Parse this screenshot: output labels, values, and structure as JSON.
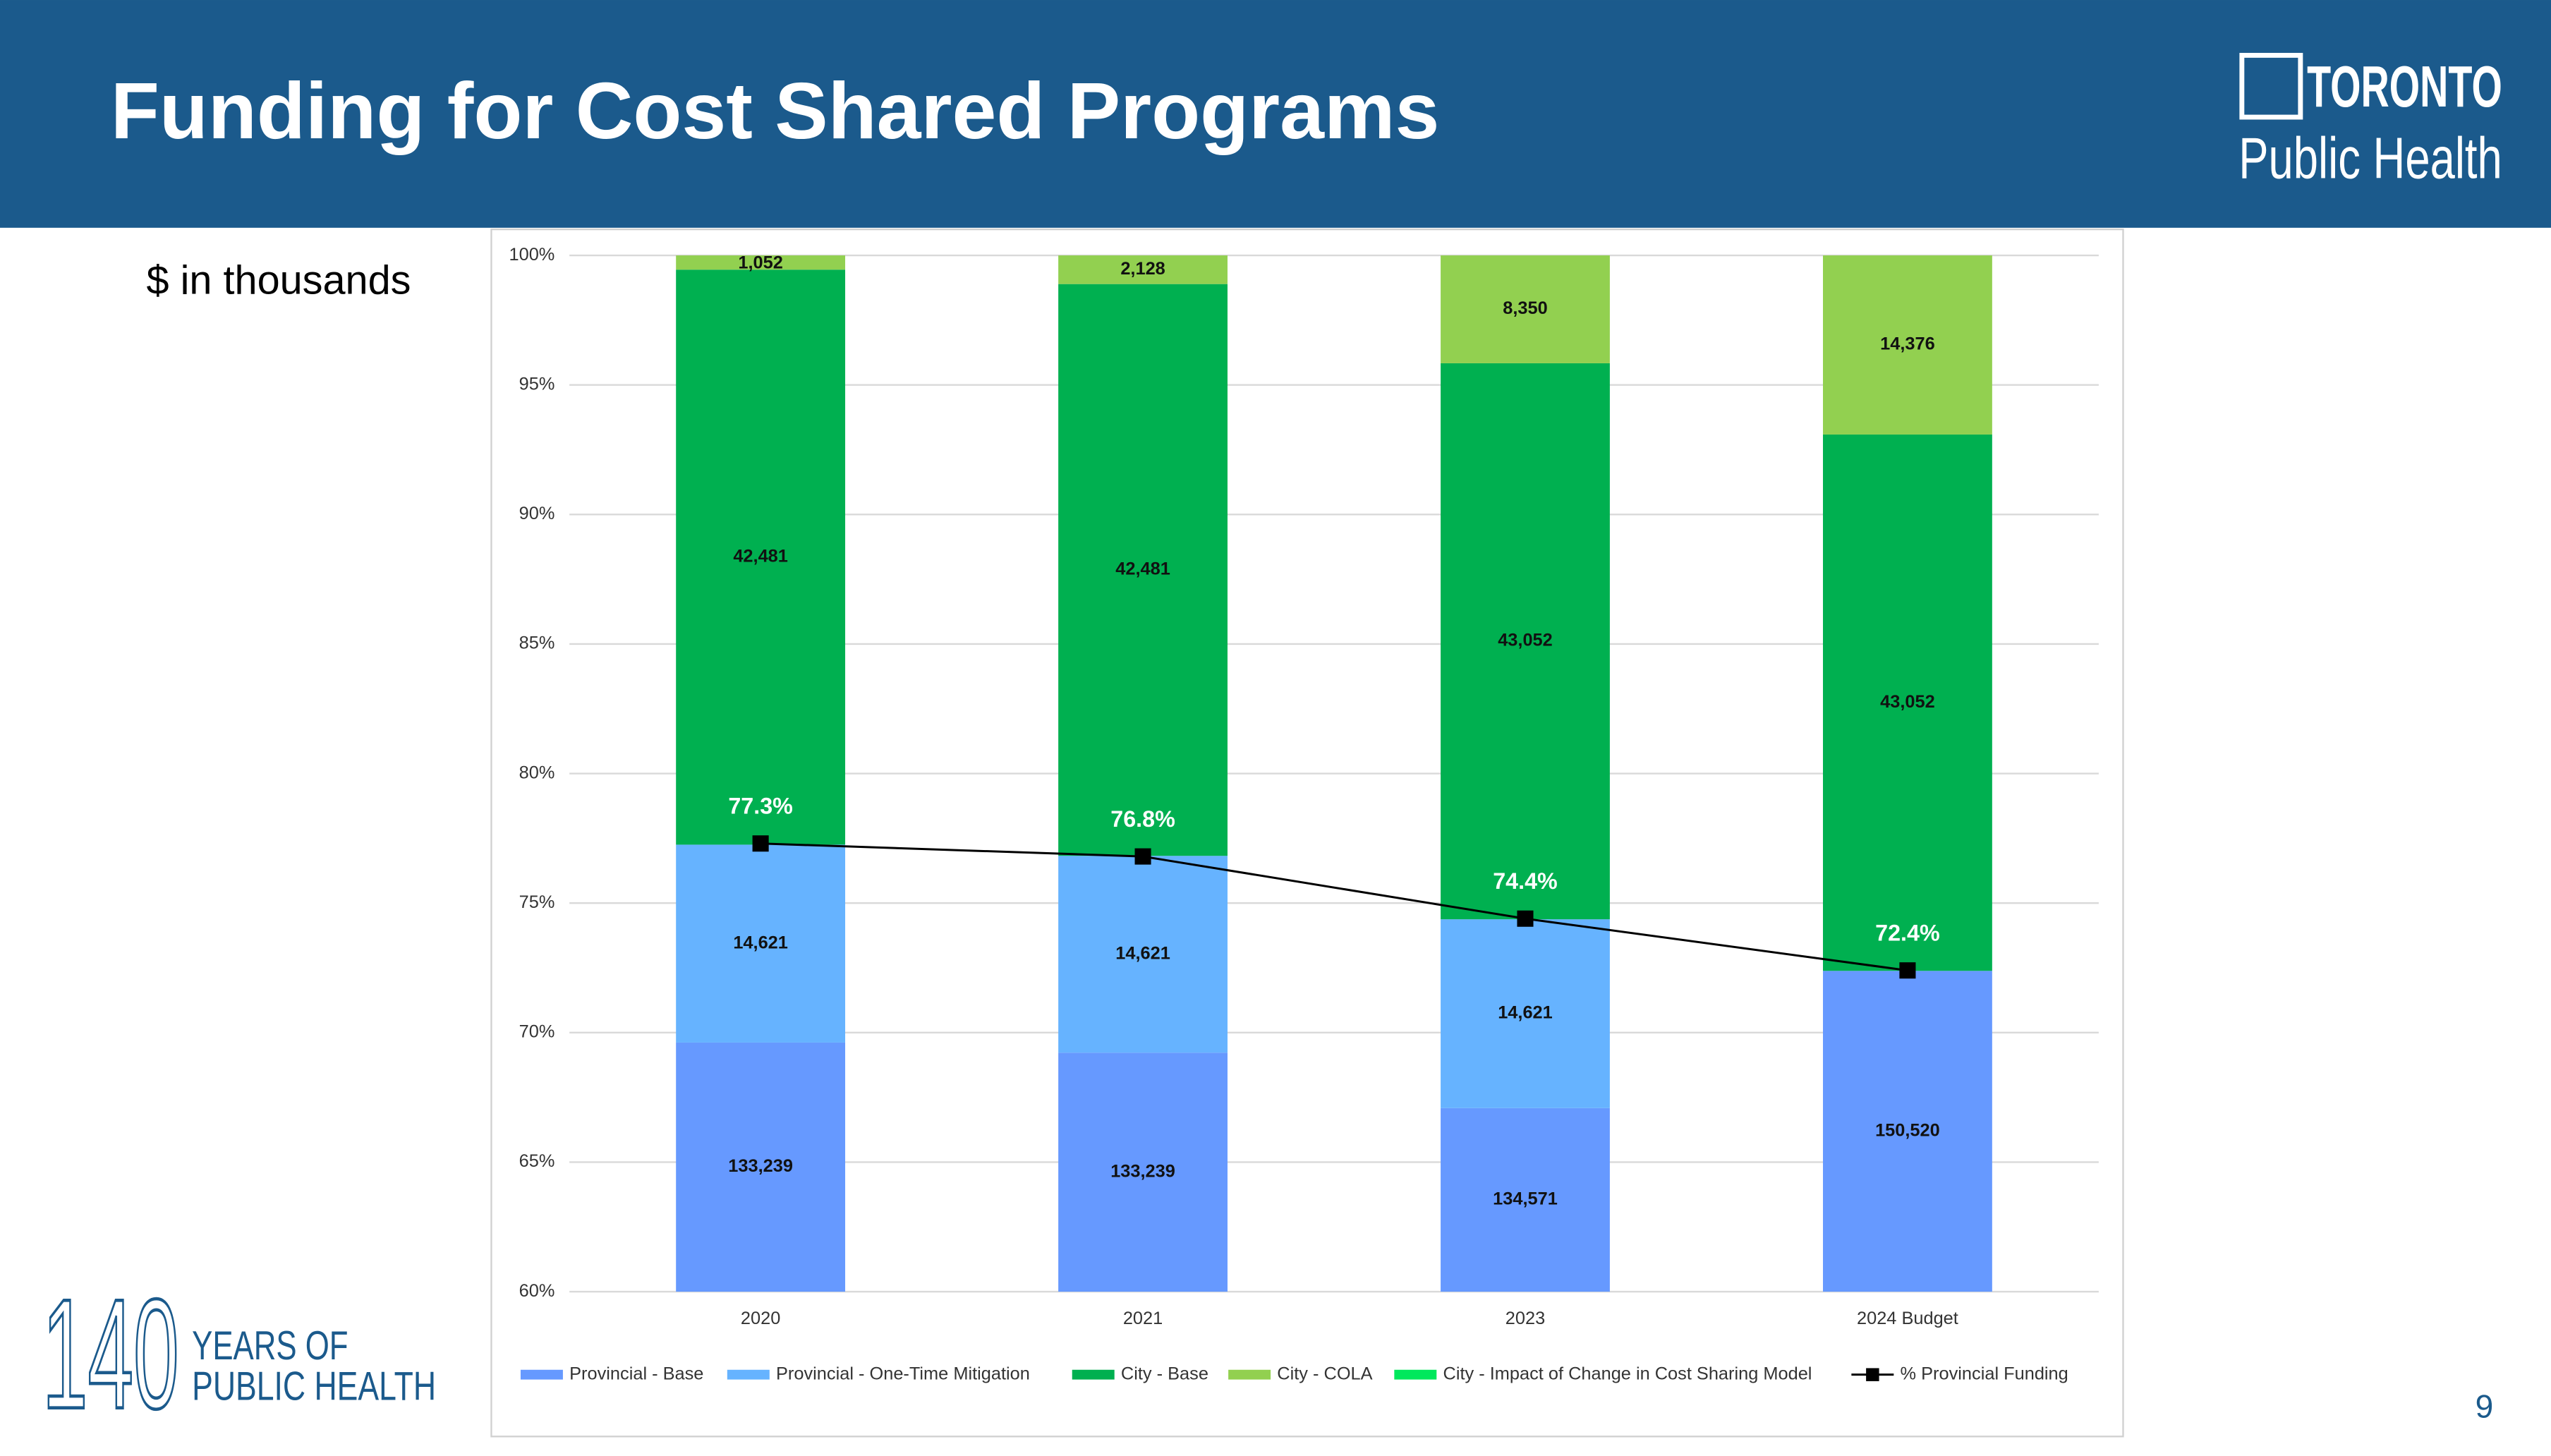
{
  "header": {
    "title": "Funding for Cost Shared Programs",
    "logo": [
      "TORONTO",
      "Public Health"
    ]
  },
  "subtitle": "$ in thousands",
  "chart_data": {
    "type": "bar",
    "stacking": "percent",
    "categories": [
      "2020",
      "2021",
      "2023",
      "2024 Budget"
    ],
    "series": [
      {
        "name": "Provincial - Base",
        "color": "#6699ff",
        "values": [
          133239,
          133239,
          134571,
          150520
        ],
        "value_labels": [
          "133,239",
          "133,239",
          "134,571",
          "150,520"
        ]
      },
      {
        "name": "Provincial - One-Time Mitigation",
        "color": "#66b3ff",
        "values": [
          14621,
          14621,
          14621,
          0
        ],
        "value_labels": [
          "14,621",
          "14,621",
          "14,621",
          null
        ]
      },
      {
        "name": "City - Base",
        "color": "#00b050",
        "values": [
          42481,
          42481,
          43052,
          43052
        ],
        "value_labels": [
          "42,481",
          "42,481",
          "43,052",
          "43,052"
        ]
      },
      {
        "name": "City - COLA",
        "color": "#92d050",
        "values": [
          1052,
          2128,
          8350,
          14376
        ],
        "value_labels": [
          "1,052",
          "2,128",
          "8,350",
          "14,376"
        ]
      },
      {
        "name": "City - Impact of Change in Cost Sharing Model",
        "color": "#00e85c",
        "values": [
          0,
          0,
          0,
          0
        ]
      },
      {
        "name": "% Provincial Funding",
        "type": "line",
        "color": "#000000",
        "values": [
          77.3,
          76.8,
          74.4,
          72.4
        ],
        "value_labels": [
          "77.3%",
          "76.8%",
          "74.4%",
          "72.4%"
        ]
      }
    ],
    "ylim": [
      60,
      100
    ],
    "yticks": [
      {
        "value": 60,
        "label": "60%"
      },
      {
        "value": 65,
        "label": "65%"
      },
      {
        "value": 70,
        "label": "70%"
      },
      {
        "value": 75,
        "label": "75%"
      },
      {
        "value": 80,
        "label": "80%"
      },
      {
        "value": 85,
        "label": "85%"
      },
      {
        "value": 90,
        "label": "90%"
      },
      {
        "value": 95,
        "label": "95%"
      },
      {
        "value": 100,
        "label": "100%"
      }
    ],
    "grid": true,
    "legend": "bottom"
  },
  "footer": {
    "badge_number": "140",
    "badge_text": [
      "YEARS OF",
      "PUBLIC HEALTH"
    ],
    "page_number": "9"
  }
}
